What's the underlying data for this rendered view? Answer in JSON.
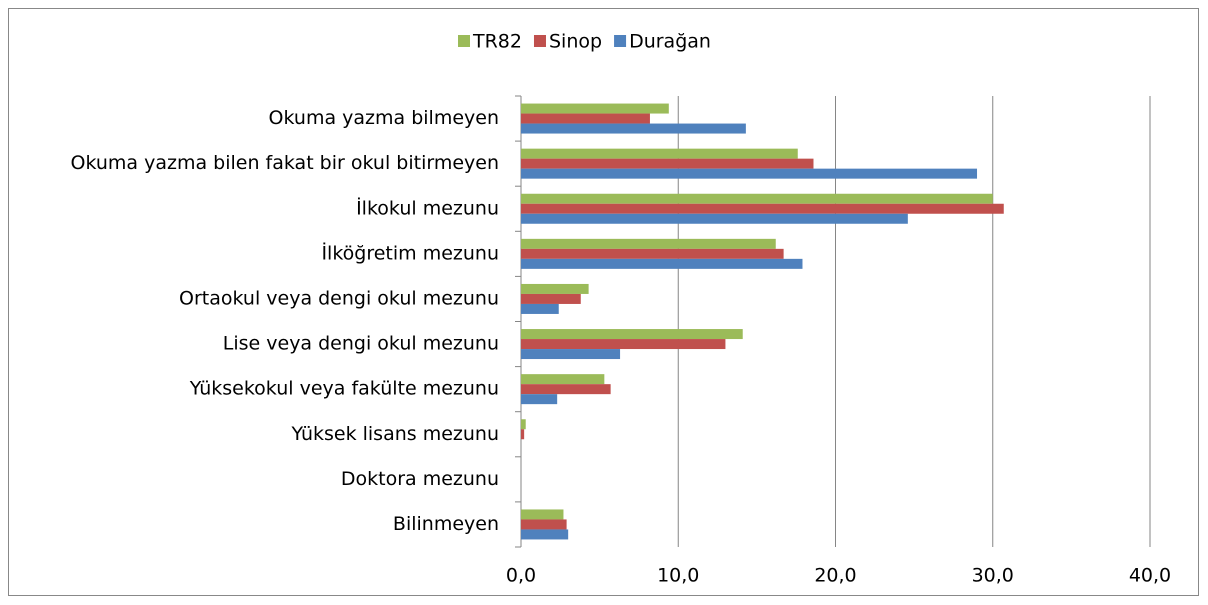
{
  "chart_data": {
    "type": "hbar",
    "categories": [
      "Okuma yazma bilmeyen",
      "Okuma yazma bilen fakat bir okul bitirmeyen",
      "İlkokul mezunu",
      "İlköğretim mezunu",
      "Ortaokul veya dengi okul mezunu",
      "Lise veya dengi okul mezunu",
      "Yüksekokul veya fakülte mezunu",
      "Yüksek lisans mezunu",
      "Doktora mezunu",
      "Bilinmeyen"
    ],
    "series": [
      {
        "name": "TR82",
        "color": "#9bbb59",
        "values": [
          9.4,
          17.6,
          30.0,
          16.2,
          4.3,
          14.1,
          5.3,
          0.3,
          0.0,
          2.7
        ]
      },
      {
        "name": "Sinop",
        "color": "#c0504d",
        "values": [
          8.2,
          18.6,
          30.7,
          16.7,
          3.8,
          13.0,
          5.7,
          0.2,
          0.0,
          2.9
        ]
      },
      {
        "name": "Durağan",
        "color": "#4f81bd",
        "values": [
          14.3,
          29.0,
          24.6,
          17.9,
          2.4,
          6.3,
          2.3,
          0.0,
          0.0,
          3.0
        ]
      }
    ],
    "xlim": [
      0,
      40
    ],
    "xticks": [
      {
        "value": 0,
        "label": "0,0"
      },
      {
        "value": 10,
        "label": "10,0"
      },
      {
        "value": 20,
        "label": "20,0"
      },
      {
        "value": 30,
        "label": "30,0"
      },
      {
        "value": 40,
        "label": "40,0"
      }
    ],
    "grid": true,
    "legend": "top"
  }
}
